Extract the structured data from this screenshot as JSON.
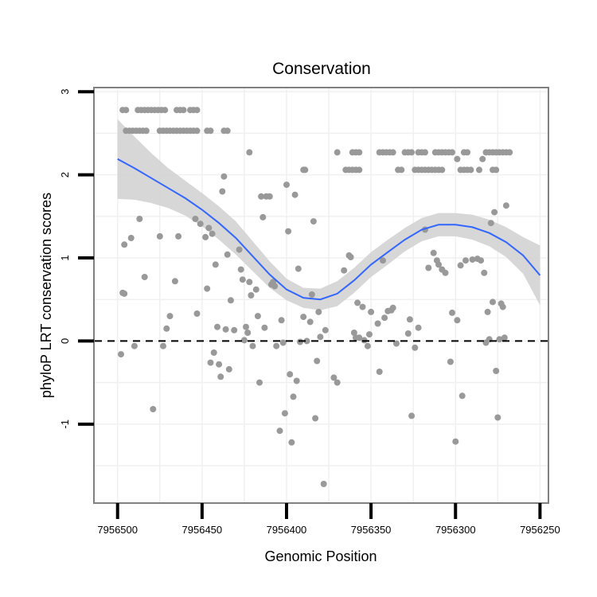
{
  "chart_data": {
    "type": "scatter",
    "title": "Conservation",
    "xlabel": "Genomic Position",
    "ylabel": "phyloP LRT conservation scores",
    "x_reversed": true,
    "xlim": [
      7956514,
      7956245
    ],
    "ylim": [
      -1.95,
      3.05
    ],
    "x_ticks": [
      7956500,
      7956450,
      7956400,
      7956350,
      7956300,
      7956250
    ],
    "x_tick_labels": [
      "7956500",
      "7956450",
      "7956400",
      "7956350",
      "7956300",
      "7956250"
    ],
    "y_ticks": [
      -1,
      0,
      1,
      2,
      3
    ],
    "y_tick_labels": [
      "-1",
      "0",
      "1",
      "2",
      "3"
    ],
    "reference_line": {
      "y": 0,
      "style": "dashed",
      "color": "#000000"
    },
    "grid": true,
    "colors": {
      "points": "#999999",
      "smooth_line": "#3366ff",
      "confidence_band": "#d3d3d3",
      "panel_border": "#808080"
    },
    "points": [
      [
        7956497,
        2.78
      ],
      [
        7956495,
        2.78
      ],
      [
        7956488,
        2.78
      ],
      [
        7956486,
        2.78
      ],
      [
        7956484,
        2.78
      ],
      [
        7956482,
        2.78
      ],
      [
        7956480,
        2.78
      ],
      [
        7956478,
        2.78
      ],
      [
        7956476,
        2.78
      ],
      [
        7956474,
        2.78
      ],
      [
        7956472,
        2.78
      ],
      [
        7956465,
        2.78
      ],
      [
        7956463,
        2.78
      ],
      [
        7956461,
        2.78
      ],
      [
        7956457,
        2.78
      ],
      [
        7956455,
        2.78
      ],
      [
        7956453,
        2.78
      ],
      [
        7956495,
        2.53
      ],
      [
        7956493,
        2.53
      ],
      [
        7956491,
        2.53
      ],
      [
        7956489,
        2.53
      ],
      [
        7956487,
        2.53
      ],
      [
        7956485,
        2.53
      ],
      [
        7956483,
        2.53
      ],
      [
        7956475,
        2.53
      ],
      [
        7956473,
        2.53
      ],
      [
        7956471,
        2.53
      ],
      [
        7956469,
        2.53
      ],
      [
        7956467,
        2.53
      ],
      [
        7956465,
        2.53
      ],
      [
        7956463,
        2.53
      ],
      [
        7956461,
        2.53
      ],
      [
        7956459,
        2.53
      ],
      [
        7956457,
        2.53
      ],
      [
        7956455,
        2.53
      ],
      [
        7956453,
        2.53
      ],
      [
        7956447,
        2.53
      ],
      [
        7956445,
        2.53
      ],
      [
        7956437,
        2.53
      ],
      [
        7956435,
        2.53
      ],
      [
        7956422,
        2.27
      ],
      [
        7956370,
        2.27
      ],
      [
        7956361,
        2.27
      ],
      [
        7956359,
        2.27
      ],
      [
        7956357,
        2.27
      ],
      [
        7956345,
        2.27
      ],
      [
        7956343,
        2.27
      ],
      [
        7956341,
        2.27
      ],
      [
        7956339,
        2.27
      ],
      [
        7956337,
        2.27
      ],
      [
        7956330,
        2.27
      ],
      [
        7956328,
        2.27
      ],
      [
        7956326,
        2.27
      ],
      [
        7956322,
        2.27
      ],
      [
        7956320,
        2.27
      ],
      [
        7956318,
        2.27
      ],
      [
        7956312,
        2.27
      ],
      [
        7956310,
        2.27
      ],
      [
        7956308,
        2.27
      ],
      [
        7956306,
        2.27
      ],
      [
        7956304,
        2.27
      ],
      [
        7956302,
        2.27
      ],
      [
        7956295,
        2.27
      ],
      [
        7956293,
        2.27
      ],
      [
        7956282,
        2.27
      ],
      [
        7956280,
        2.27
      ],
      [
        7956278,
        2.27
      ],
      [
        7956276,
        2.27
      ],
      [
        7956274,
        2.27
      ],
      [
        7956272,
        2.27
      ],
      [
        7956270,
        2.27
      ],
      [
        7956268,
        2.27
      ],
      [
        7956390,
        2.06
      ],
      [
        7956389,
        2.06
      ],
      [
        7956365,
        2.06
      ],
      [
        7956363,
        2.06
      ],
      [
        7956361,
        2.06
      ],
      [
        7956359,
        2.06
      ],
      [
        7956357,
        2.06
      ],
      [
        7956334,
        2.06
      ],
      [
        7956332,
        2.06
      ],
      [
        7956324,
        2.06
      ],
      [
        7956322,
        2.06
      ],
      [
        7956320,
        2.06
      ],
      [
        7956318,
        2.06
      ],
      [
        7956316,
        2.06
      ],
      [
        7956314,
        2.06
      ],
      [
        7956312,
        2.06
      ],
      [
        7956310,
        2.06
      ],
      [
        7956308,
        2.06
      ],
      [
        7956297,
        2.06
      ],
      [
        7956295,
        2.06
      ],
      [
        7956293,
        2.06
      ],
      [
        7956291,
        2.06
      ],
      [
        7956286,
        2.06
      ],
      [
        7956278,
        2.06
      ],
      [
        7956276,
        2.06
      ],
      [
        7956299,
        2.19
      ],
      [
        7956284,
        2.19
      ],
      [
        7956498,
        -0.16
      ],
      [
        7956497,
        0.58
      ],
      [
        7956496,
        0.57
      ],
      [
        7956496,
        1.16
      ],
      [
        7956492,
        1.24
      ],
      [
        7956490,
        -0.06
      ],
      [
        7956487,
        1.47
      ],
      [
        7956484,
        0.77
      ],
      [
        7956479,
        -0.82
      ],
      [
        7956475,
        1.26
      ],
      [
        7956473,
        -0.06
      ],
      [
        7956471,
        0.15
      ],
      [
        7956469,
        0.3
      ],
      [
        7956466,
        0.72
      ],
      [
        7956464,
        1.26
      ],
      [
        7956454,
        1.47
      ],
      [
        7956453,
        0.33
      ],
      [
        7956451,
        1.41
      ],
      [
        7956448,
        1.25
      ],
      [
        7956447,
        0.63
      ],
      [
        7956446,
        1.36
      ],
      [
        7956445,
        -0.26
      ],
      [
        7956444,
        1.29
      ],
      [
        7956443,
        -0.14
      ],
      [
        7956442,
        0.92
      ],
      [
        7956441,
        0.17
      ],
      [
        7956440,
        -0.28
      ],
      [
        7956439,
        -0.43
      ],
      [
        7956438,
        1.8
      ],
      [
        7956437,
        1.98
      ],
      [
        7956436,
        0.14
      ],
      [
        7956435,
        1.04
      ],
      [
        7956434,
        -0.34
      ],
      [
        7956433,
        0.49
      ],
      [
        7956431,
        0.13
      ],
      [
        7956428,
        1.1
      ],
      [
        7956427,
        0.86
      ],
      [
        7956426,
        0.74
      ],
      [
        7956425,
        0.01
      ],
      [
        7956424,
        0.17
      ],
      [
        7956423,
        0.1
      ],
      [
        7956422,
        0.71
      ],
      [
        7956421,
        0.55
      ],
      [
        7956420,
        -0.06
      ],
      [
        7956418,
        0.62
      ],
      [
        7956417,
        0.3
      ],
      [
        7956416,
        -0.5
      ],
      [
        7956415,
        1.74
      ],
      [
        7956414,
        1.49
      ],
      [
        7956413,
        0.16
      ],
      [
        7956412,
        1.74
      ],
      [
        7956410,
        1.74
      ],
      [
        7956409,
        0.68
      ],
      [
        7956408,
        0.71
      ],
      [
        7956407,
        0.66
      ],
      [
        7956406,
        -0.06
      ],
      [
        7956404,
        -1.08
      ],
      [
        7956403,
        0.25
      ],
      [
        7956402,
        -0.02
      ],
      [
        7956401,
        -0.87
      ],
      [
        7956400,
        1.88
      ],
      [
        7956399,
        1.32
      ],
      [
        7956398,
        -0.4
      ],
      [
        7956397,
        -1.22
      ],
      [
        7956396,
        -0.67
      ],
      [
        7956395,
        1.76
      ],
      [
        7956394,
        -0.48
      ],
      [
        7956393,
        0.87
      ],
      [
        7956392,
        -0.01
      ],
      [
        7956390,
        0.29
      ],
      [
        7956388,
        0.0
      ],
      [
        7956386,
        0.23
      ],
      [
        7956385,
        0.56
      ],
      [
        7956384,
        1.44
      ],
      [
        7956383,
        -0.93
      ],
      [
        7956382,
        -0.24
      ],
      [
        7956381,
        0.35
      ],
      [
        7956380,
        0.05
      ],
      [
        7956378,
        -1.72
      ],
      [
        7956377,
        0.13
      ],
      [
        7956372,
        -0.44
      ],
      [
        7956370,
        -0.5
      ],
      [
        7956366,
        0.85
      ],
      [
        7956363,
        1.03
      ],
      [
        7956362,
        1.01
      ],
      [
        7956360,
        0.1
      ],
      [
        7956359,
        0.04
      ],
      [
        7956358,
        0.46
      ],
      [
        7956357,
        0.04
      ],
      [
        7956355,
        0.41
      ],
      [
        7956354,
        0.01
      ],
      [
        7956352,
        -0.06
      ],
      [
        7956351,
        0.08
      ],
      [
        7956350,
        0.35
      ],
      [
        7956346,
        0.21
      ],
      [
        7956345,
        -0.37
      ],
      [
        7956343,
        0.97
      ],
      [
        7956342,
        0.28
      ],
      [
        7956340,
        0.36
      ],
      [
        7956338,
        0.37
      ],
      [
        7956337,
        0.4
      ],
      [
        7956335,
        -0.03
      ],
      [
        7956328,
        0.09
      ],
      [
        7956327,
        0.26
      ],
      [
        7956326,
        -0.9
      ],
      [
        7956324,
        -0.08
      ],
      [
        7956322,
        0.16
      ],
      [
        7956318,
        1.34
      ],
      [
        7956316,
        0.88
      ],
      [
        7956313,
        1.06
      ],
      [
        7956311,
        0.97
      ],
      [
        7956310,
        0.92
      ],
      [
        7956308,
        0.86
      ],
      [
        7956306,
        0.82
      ],
      [
        7956303,
        -0.25
      ],
      [
        7956302,
        0.34
      ],
      [
        7956300,
        -1.21
      ],
      [
        7956299,
        0.25
      ],
      [
        7956297,
        0.91
      ],
      [
        7956296,
        -0.66
      ],
      [
        7956294,
        0.97
      ],
      [
        7956290,
        0.98
      ],
      [
        7956287,
        0.99
      ],
      [
        7956285,
        0.97
      ],
      [
        7956283,
        0.82
      ],
      [
        7956282,
        -0.02
      ],
      [
        7956281,
        0.35
      ],
      [
        7956280,
        0.02
      ],
      [
        7956279,
        1.42
      ],
      [
        7956278,
        0.47
      ],
      [
        7956277,
        1.55
      ],
      [
        7956276,
        -0.36
      ],
      [
        7956275,
        -0.92
      ],
      [
        7956274,
        0.02
      ],
      [
        7956273,
        0.45
      ],
      [
        7956272,
        0.41
      ],
      [
        7956271,
        0.04
      ],
      [
        7956270,
        1.63
      ]
    ],
    "smooth": {
      "x": [
        7956500,
        7956490,
        7956480,
        7956470,
        7956460,
        7956450,
        7956440,
        7956430,
        7956420,
        7956410,
        7956400,
        7956390,
        7956380,
        7956370,
        7956360,
        7956350,
        7956340,
        7956330,
        7956320,
        7956310,
        7956300,
        7956290,
        7956280,
        7956270,
        7956260,
        7956250
      ],
      "y": [
        2.19,
        2.08,
        1.96,
        1.84,
        1.72,
        1.58,
        1.42,
        1.24,
        1.02,
        0.8,
        0.62,
        0.52,
        0.5,
        0.57,
        0.73,
        0.92,
        1.07,
        1.22,
        1.34,
        1.4,
        1.4,
        1.37,
        1.3,
        1.19,
        1.03,
        0.79
      ],
      "lo": [
        1.71,
        1.7,
        1.66,
        1.6,
        1.51,
        1.38,
        1.22,
        1.04,
        0.84,
        0.64,
        0.49,
        0.4,
        0.37,
        0.42,
        0.58,
        0.77,
        0.92,
        1.08,
        1.2,
        1.26,
        1.26,
        1.22,
        1.14,
        1.01,
        0.81,
        0.43
      ],
      "hi": [
        2.67,
        2.46,
        2.26,
        2.08,
        1.93,
        1.78,
        1.62,
        1.44,
        1.2,
        0.96,
        0.75,
        0.64,
        0.63,
        0.72,
        0.88,
        1.07,
        1.22,
        1.36,
        1.48,
        1.54,
        1.54,
        1.52,
        1.46,
        1.37,
        1.25,
        1.15
      ]
    }
  }
}
